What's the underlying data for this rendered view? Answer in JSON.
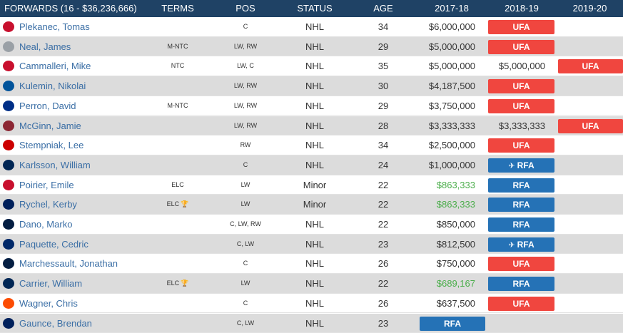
{
  "header": {
    "group": "FORWARDS (16 - $36,236,666)",
    "terms": "TERMS",
    "pos": "POS",
    "status": "STATUS",
    "age": "AGE",
    "y1": "2017-18",
    "y2": "2018-19",
    "y3": "2019-20"
  },
  "icons": {
    "waiver": "✈",
    "trophy": "🏆"
  },
  "rows": [
    {
      "name": "Plekanec, Tomas",
      "terms": "",
      "pos": "C",
      "status": "NHL",
      "age": "34",
      "sal": "$6,000,000",
      "y2": "",
      "y3": "",
      "logo": "#c8102e"
    },
    {
      "name": "Neal, James",
      "terms": "M-NTC",
      "pos": "LW, RW",
      "status": "NHL",
      "age": "29",
      "sal": "$5,000,000",
      "y2": "",
      "y3": "",
      "logo": "#9aa0a6"
    },
    {
      "name": "Cammalleri, Mike",
      "terms": "NTC",
      "pos": "LW, C",
      "status": "NHL",
      "age": "35",
      "sal": "$5,000,000",
      "y2": "$5,000,000",
      "y3": "",
      "logo": "#c8102e"
    },
    {
      "name": "Kulemin, Nikolai",
      "terms": "",
      "pos": "LW, RW",
      "status": "NHL",
      "age": "30",
      "sal": "$4,187,500",
      "y2": "",
      "y3": "",
      "logo": "#00539b"
    },
    {
      "name": "Perron, David",
      "terms": "M-NTC",
      "pos": "LW, RW",
      "status": "NHL",
      "age": "29",
      "sal": "$3,750,000",
      "y2": "",
      "y3": "",
      "logo": "#002f87"
    },
    {
      "name": "McGinn, Jamie",
      "terms": "",
      "pos": "LW, RW",
      "status": "NHL",
      "age": "28",
      "sal": "$3,333,333",
      "y2": "$3,333,333",
      "y3": "",
      "logo": "#8c2633"
    },
    {
      "name": "Stempniak, Lee",
      "terms": "",
      "pos": "RW",
      "status": "NHL",
      "age": "34",
      "sal": "$2,500,000",
      "y2": "",
      "y3": "",
      "logo": "#cc0000"
    },
    {
      "name": "Karlsson, William",
      "terms": "",
      "pos": "C",
      "status": "NHL",
      "age": "24",
      "sal": "$1,000,000",
      "y2": "",
      "y3": "",
      "logo": "#002654"
    },
    {
      "name": "Poirier, Emile",
      "terms": "ELC",
      "pos": "LW",
      "status": "Minor",
      "age": "22",
      "sal": "$863,333",
      "y2": "",
      "y3": "",
      "logo": "#c8102e"
    },
    {
      "name": "Rychel, Kerby",
      "terms": "ELC",
      "pos": "LW",
      "status": "Minor",
      "age": "22",
      "sal": "$863,333",
      "y2": "",
      "y3": "",
      "logo": "#00205b"
    },
    {
      "name": "Dano, Marko",
      "terms": "",
      "pos": "C, LW, RW",
      "status": "NHL",
      "age": "22",
      "sal": "$850,000",
      "y2": "",
      "y3": "",
      "logo": "#041e42"
    },
    {
      "name": "Paquette, Cedric",
      "terms": "",
      "pos": "C, LW",
      "status": "NHL",
      "age": "23",
      "sal": "$812,500",
      "y2": "",
      "y3": "",
      "logo": "#002868"
    },
    {
      "name": "Marchessault, Jonathan",
      "terms": "",
      "pos": "C",
      "status": "NHL",
      "age": "26",
      "sal": "$750,000",
      "y2": "",
      "y3": "",
      "logo": "#041e42"
    },
    {
      "name": "Carrier, William",
      "terms": "ELC",
      "pos": "LW",
      "status": "NHL",
      "age": "22",
      "sal": "$689,167",
      "y2": "",
      "y3": "",
      "logo": "#002654"
    },
    {
      "name": "Wagner, Chris",
      "terms": "",
      "pos": "C",
      "status": "NHL",
      "age": "26",
      "sal": "$637,500",
      "y2": "",
      "y3": "",
      "logo": "#fc4c02"
    },
    {
      "name": "Gaunce, Brendan",
      "terms": "",
      "pos": "C, LW",
      "status": "NHL",
      "age": "23",
      "sal": "",
      "y2": "",
      "y3": "",
      "logo": "#00205b"
    }
  ],
  "badges": [
    {
      "row": 0,
      "col": 2,
      "type": "ufa",
      "label": "UFA"
    },
    {
      "row": 1,
      "col": 2,
      "type": "ufa",
      "label": "UFA"
    },
    {
      "row": 2,
      "col": 3,
      "type": "ufa",
      "label": "UFA"
    },
    {
      "row": 3,
      "col": 2,
      "type": "ufa",
      "label": "UFA"
    },
    {
      "row": 4,
      "col": 2,
      "type": "ufa",
      "label": "UFA"
    },
    {
      "row": 5,
      "col": 3,
      "type": "ufa",
      "label": "UFA"
    },
    {
      "row": 6,
      "col": 2,
      "type": "ufa",
      "label": "UFA"
    },
    {
      "row": 7,
      "col": 2,
      "type": "rfa",
      "label": "RFA",
      "waiver": true
    },
    {
      "row": 8,
      "col": 2,
      "type": "rfa",
      "label": "RFA"
    },
    {
      "row": 9,
      "col": 2,
      "type": "rfa",
      "label": "RFA"
    },
    {
      "row": 10,
      "col": 2,
      "type": "rfa",
      "label": "RFA"
    },
    {
      "row": 11,
      "col": 2,
      "type": "rfa",
      "label": "RFA",
      "waiver": true
    },
    {
      "row": 12,
      "col": 2,
      "type": "ufa",
      "label": "UFA"
    },
    {
      "row": 13,
      "col": 2,
      "type": "rfa",
      "label": "RFA"
    },
    {
      "row": 14,
      "col": 2,
      "type": "ufa",
      "label": "UFA"
    },
    {
      "row": 15,
      "col": 1,
      "type": "rfa",
      "label": "RFA"
    }
  ]
}
